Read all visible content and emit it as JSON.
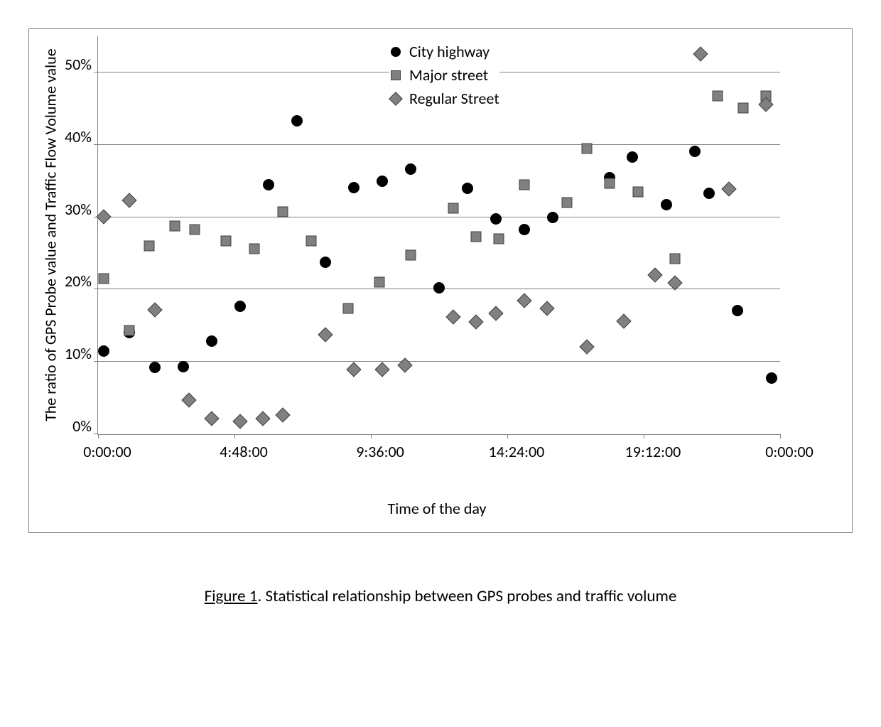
{
  "chart": {
    "type": "scatter",
    "y_axis": {
      "label": "The ratio of GPS Probe value and Traffic Flow Volume value",
      "min": 0,
      "max": 55,
      "ticks": [
        0,
        10,
        20,
        30,
        40,
        50
      ],
      "tick_labels": [
        "0%",
        "10%",
        "20%",
        "30%",
        "40%",
        "50%"
      ],
      "label_fontsize": 22,
      "tick_fontsize": 22
    },
    "x_axis": {
      "label": "Time of the day",
      "min": 0,
      "max": 24,
      "ticks": [
        0,
        4.8,
        9.6,
        14.4,
        19.2,
        24
      ],
      "tick_labels": [
        "0:00:00",
        "4:48:00",
        "9:36:00",
        "14:24:00",
        "19:12:00",
        "0:00:00"
      ],
      "label_fontsize": 22,
      "tick_fontsize": 22
    },
    "gridlines_y": [
      10,
      20,
      30,
      40,
      50
    ],
    "grid_color": "#808080",
    "background_color": "#ffffff",
    "border_color": "#808080",
    "legend": {
      "position": "top-center",
      "items": [
        {
          "label": "City highway",
          "marker": "circle",
          "color": "#000000"
        },
        {
          "label": "Major street",
          "marker": "square",
          "color": "#808080"
        },
        {
          "label": "Regular Street",
          "marker": "diamond",
          "color": "#808080"
        }
      ]
    },
    "series": [
      {
        "name": "City highway",
        "marker": "circle",
        "color": "#000000",
        "marker_size": 16,
        "points": [
          [
            0.2,
            11.5
          ],
          [
            1.1,
            14.0
          ],
          [
            2.0,
            9.2
          ],
          [
            3.0,
            9.3
          ],
          [
            4.0,
            12.9
          ],
          [
            5.0,
            17.7
          ],
          [
            6.0,
            34.5
          ],
          [
            7.0,
            43.3
          ],
          [
            8.0,
            23.8
          ],
          [
            9.0,
            34.1
          ],
          [
            10.0,
            35.0
          ],
          [
            11.0,
            36.6
          ],
          [
            12.0,
            20.2
          ],
          [
            13.0,
            34.0
          ],
          [
            14.0,
            29.8
          ],
          [
            15.0,
            28.3
          ],
          [
            16.0,
            30.0
          ],
          [
            18.0,
            35.5
          ],
          [
            18.8,
            38.3
          ],
          [
            20.0,
            31.7
          ],
          [
            21.0,
            39.1
          ],
          [
            21.5,
            33.3
          ],
          [
            22.5,
            17.1
          ],
          [
            23.7,
            7.8
          ]
        ]
      },
      {
        "name": "Major street",
        "marker": "square",
        "color": "#808080",
        "marker_size": 13,
        "points": [
          [
            0.2,
            21.5
          ],
          [
            1.1,
            14.3
          ],
          [
            1.8,
            26.0
          ],
          [
            2.7,
            28.8
          ],
          [
            3.4,
            28.3
          ],
          [
            4.5,
            26.7
          ],
          [
            5.5,
            25.6
          ],
          [
            6.5,
            30.7
          ],
          [
            7.5,
            26.7
          ],
          [
            8.8,
            17.4
          ],
          [
            9.9,
            21.0
          ],
          [
            11.0,
            24.8
          ],
          [
            12.5,
            31.2
          ],
          [
            13.3,
            27.3
          ],
          [
            14.1,
            27.0
          ],
          [
            15.0,
            34.5
          ],
          [
            16.5,
            32.0
          ],
          [
            17.2,
            39.5
          ],
          [
            18.0,
            34.7
          ],
          [
            19.0,
            33.5
          ],
          [
            20.3,
            24.3
          ],
          [
            21.8,
            46.8
          ],
          [
            22.7,
            45.1
          ],
          [
            23.5,
            46.8
          ]
        ]
      },
      {
        "name": "Regular Street",
        "marker": "diamond",
        "color": "#808080",
        "marker_size": 13,
        "points": [
          [
            0.2,
            30.1
          ],
          [
            1.1,
            32.3
          ],
          [
            2.0,
            17.2
          ],
          [
            3.2,
            4.7
          ],
          [
            4.0,
            2.2
          ],
          [
            5.0,
            1.8
          ],
          [
            5.8,
            2.2
          ],
          [
            6.5,
            2.7
          ],
          [
            8.0,
            13.8
          ],
          [
            9.0,
            8.9
          ],
          [
            10.0,
            8.9
          ],
          [
            10.8,
            9.5
          ],
          [
            12.5,
            16.2
          ],
          [
            13.3,
            15.5
          ],
          [
            14.0,
            16.7
          ],
          [
            15.0,
            18.5
          ],
          [
            15.8,
            17.4
          ],
          [
            17.2,
            12.1
          ],
          [
            18.5,
            15.6
          ],
          [
            19.6,
            22.0
          ],
          [
            20.3,
            20.9
          ],
          [
            21.2,
            52.5
          ],
          [
            22.2,
            33.9
          ],
          [
            23.5,
            45.6
          ]
        ]
      }
    ]
  },
  "caption": {
    "label": "Figure 1",
    "text": ". Statistical relationship between GPS probes and traffic volume",
    "fontsize": 23
  }
}
